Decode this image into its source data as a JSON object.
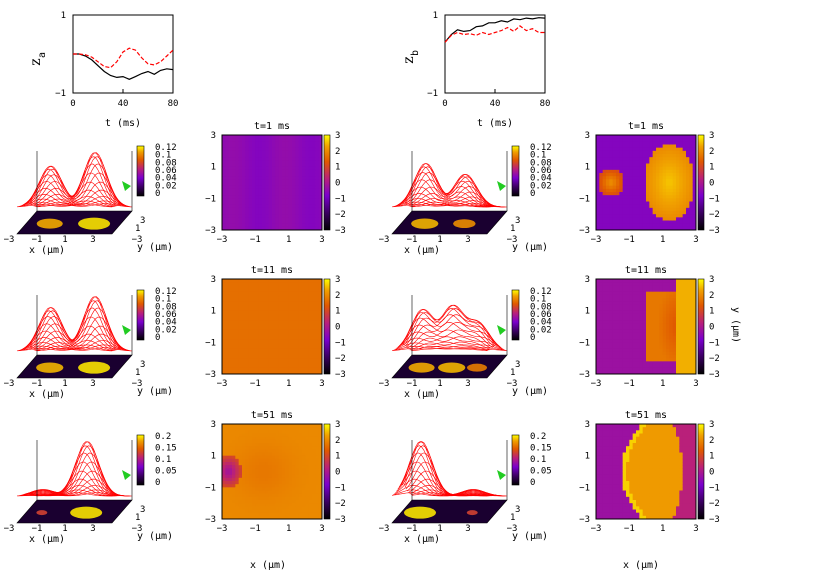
{
  "colors": {
    "black_line": "#000000",
    "red_line": "#ff0000",
    "surface_mesh": "#ff0000",
    "surface_cap": "#22cc22",
    "colormap": [
      "#000000",
      "#3a0060",
      "#7a00cc",
      "#b9207a",
      "#e05800",
      "#f0a000",
      "#ffff00"
    ]
  },
  "chart_data": [
    {
      "type": "line",
      "id": "za",
      "ylabel": "z",
      "ylabel_sub": "a",
      "xlabel": "t (ms)",
      "xlim": [
        0,
        80
      ],
      "ylim": [
        -1,
        1
      ],
      "xticks": [
        "0",
        "40",
        "80"
      ],
      "yticks": [
        "1",
        "−1"
      ],
      "series": [
        {
          "style": "solid",
          "color": "#000000",
          "x": [
            0,
            5,
            10,
            15,
            20,
            25,
            30,
            35,
            40,
            45,
            50,
            55,
            60,
            65,
            70,
            75,
            80
          ],
          "y": [
            0.0,
            0.0,
            -0.05,
            -0.15,
            -0.3,
            -0.45,
            -0.55,
            -0.6,
            -0.58,
            -0.65,
            -0.58,
            -0.5,
            -0.45,
            -0.52,
            -0.42,
            -0.38,
            -0.4
          ]
        },
        {
          "style": "dashed",
          "color": "#ff0000",
          "x": [
            0,
            5,
            10,
            15,
            20,
            25,
            30,
            35,
            40,
            45,
            50,
            55,
            60,
            65,
            70,
            75,
            80
          ],
          "y": [
            0.0,
            0.0,
            -0.02,
            -0.08,
            -0.2,
            -0.32,
            -0.35,
            -0.2,
            0.05,
            0.15,
            0.1,
            -0.1,
            -0.25,
            -0.28,
            -0.2,
            -0.05,
            0.1
          ]
        }
      ]
    },
    {
      "type": "line",
      "id": "zb",
      "ylabel": "z",
      "ylabel_sub": "b",
      "xlabel": "t (ms)",
      "xlim": [
        0,
        80
      ],
      "ylim": [
        -1,
        1
      ],
      "xticks": [
        "0",
        "40",
        "80"
      ],
      "yticks": [
        "1",
        "−1"
      ],
      "series": [
        {
          "style": "solid",
          "color": "#000000",
          "x": [
            0,
            5,
            10,
            15,
            20,
            25,
            30,
            35,
            40,
            45,
            50,
            55,
            60,
            65,
            70,
            75,
            80
          ],
          "y": [
            0.3,
            0.5,
            0.62,
            0.58,
            0.6,
            0.7,
            0.72,
            0.8,
            0.8,
            0.85,
            0.82,
            0.9,
            0.88,
            0.92,
            0.9,
            0.93,
            0.92
          ]
        },
        {
          "style": "dashed",
          "color": "#ff0000",
          "x": [
            0,
            5,
            10,
            15,
            20,
            25,
            30,
            35,
            40,
            45,
            50,
            55,
            60,
            65,
            70,
            75,
            80
          ],
          "y": [
            0.3,
            0.48,
            0.55,
            0.5,
            0.52,
            0.48,
            0.55,
            0.5,
            0.55,
            0.6,
            0.68,
            0.58,
            0.72,
            0.6,
            0.65,
            0.55,
            0.55
          ]
        }
      ]
    },
    {
      "type": "heatmap",
      "panels": [
        {
          "id": "s1",
          "kind": "surface",
          "zticks": [
            "0.12",
            "0.1",
            "0.08",
            "0.06",
            "0.04",
            "0.02",
            "0"
          ],
          "peaks": [
            [
              -1.5,
              0.75
            ],
            [
              1.3,
              1.0
            ]
          ]
        },
        {
          "id": "h1",
          "kind": "phase",
          "title": "t=1 ms",
          "pattern": "uniform-purple"
        },
        {
          "id": "s2",
          "kind": "surface",
          "zticks": [
            "0.12",
            "0.1",
            "0.08",
            "0.06",
            "0.04",
            "0.02",
            "0"
          ],
          "peaks": [
            [
              -1.5,
              0.8
            ],
            [
              1.0,
              0.6
            ]
          ]
        },
        {
          "id": "h2",
          "kind": "phase",
          "title": "t=1 ms",
          "pattern": "two-blobs"
        },
        {
          "id": "s3",
          "kind": "surface",
          "zticks": [
            "0.12",
            "0.1",
            "0.08",
            "0.06",
            "0.04",
            "0.02",
            "0"
          ],
          "peaks": [
            [
              -1.5,
              0.8
            ],
            [
              1.3,
              1.0
            ]
          ]
        },
        {
          "id": "h3",
          "kind": "phase",
          "title": "t=11 ms",
          "pattern": "uniform-orange"
        },
        {
          "id": "s4",
          "kind": "surface",
          "zticks": [
            "0.12",
            "0.1",
            "0.08",
            "0.06",
            "0.04",
            "0.02",
            "0"
          ],
          "peaks": [
            [
              -1.7,
              0.75
            ],
            [
              0.2,
              0.8
            ],
            [
              1.8,
              0.5
            ]
          ]
        },
        {
          "id": "h4",
          "kind": "phase",
          "title": "t=11 ms",
          "pattern": "right-block"
        },
        {
          "id": "s5",
          "kind": "surface",
          "zticks": [
            "0.2",
            "0.15",
            "0.1",
            "0.05",
            "0"
          ],
          "peaks": [
            [
              0.8,
              1.0
            ],
            [
              -2.0,
              0.12
            ]
          ]
        },
        {
          "id": "h5",
          "kind": "phase",
          "title": "t=51 ms",
          "pattern": "left-spot"
        },
        {
          "id": "s6",
          "kind": "surface",
          "zticks": [
            "0.2",
            "0.15",
            "0.1",
            "0.05",
            "0"
          ],
          "peaks": [
            [
              -1.8,
              1.0
            ],
            [
              1.5,
              0.12
            ]
          ]
        },
        {
          "id": "h6",
          "kind": "phase",
          "title": "t=51 ms",
          "pattern": "arc"
        }
      ],
      "xlim": [
        -3,
        3
      ],
      "ylim": [
        -3,
        3
      ],
      "surface_xticks": [
        "−3",
        "−1",
        "1",
        "3"
      ],
      "surface_yticks": [
        "−3",
        "−1",
        "1",
        "3"
      ],
      "phase_xticks": [
        "−3",
        "−1",
        "1",
        "3"
      ],
      "phase_yticks": [
        "3",
        "1",
        "−1",
        "−3"
      ],
      "phase_cbticks": [
        "3",
        "2",
        "1",
        "0",
        "−1",
        "−2",
        "−3"
      ],
      "surface_xlabel": "x (μm)",
      "surface_ylabel": "y (μm)",
      "phase_xlabel": "x (μm)",
      "phase_ylabel_right": "y (μm)"
    }
  ]
}
